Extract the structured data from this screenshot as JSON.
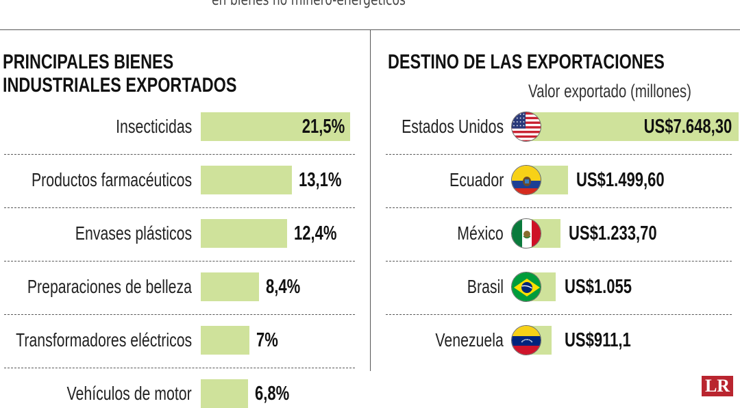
{
  "subtitle": "en bienes no minero-energéticos",
  "left_panel": {
    "heading_line1": "PRINCIPALES BIENES",
    "heading_line2": "INDUSTRIALES EXPORTADOS"
  },
  "right_panel": {
    "heading": "DESTINO DE LAS EXPORTACIONES",
    "value_caption": "Valor exportado (millones)"
  },
  "logo_text": "LR",
  "colors": {
    "bar": "#cfe29b",
    "text": "#111111",
    "rule": "#555555",
    "logo": "#b9252f"
  },
  "chart_data": [
    {
      "type": "bar",
      "orientation": "horizontal",
      "title": "PRINCIPALES BIENES INDUSTRIALES EXPORTADOS",
      "categories": [
        "Insecticidas",
        "Productos farmacéuticos",
        "Envases plásticos",
        "Preparaciones de belleza",
        "Transformadores eléctricos",
        "Vehículos de motor"
      ],
      "values": [
        21.5,
        13.1,
        12.4,
        8.4,
        7.0,
        6.8
      ],
      "value_labels": [
        "21,5%",
        "13,1%",
        "12,4%",
        "8,4%",
        "7%",
        "6,8%"
      ],
      "unit": "%"
    },
    {
      "type": "bar",
      "orientation": "horizontal",
      "title": "DESTINO DE LAS EXPORTACIONES",
      "subtitle": "Valor exportado (millones)",
      "categories": [
        "Estados Unidos",
        "Ecuador",
        "México",
        "Brasil",
        "Venezuela"
      ],
      "values": [
        7648.3,
        1499.6,
        1233.7,
        1055.0,
        911.1
      ],
      "value_labels": [
        "US$7.648,30",
        "US$1.499,60",
        "US$1.233,70",
        "US$1.055",
        "US$911,1"
      ],
      "flags": [
        "usa-flag-icon",
        "ecuador-flag-icon",
        "mexico-flag-icon",
        "brazil-flag-icon",
        "venezuela-flag-icon"
      ]
    }
  ]
}
